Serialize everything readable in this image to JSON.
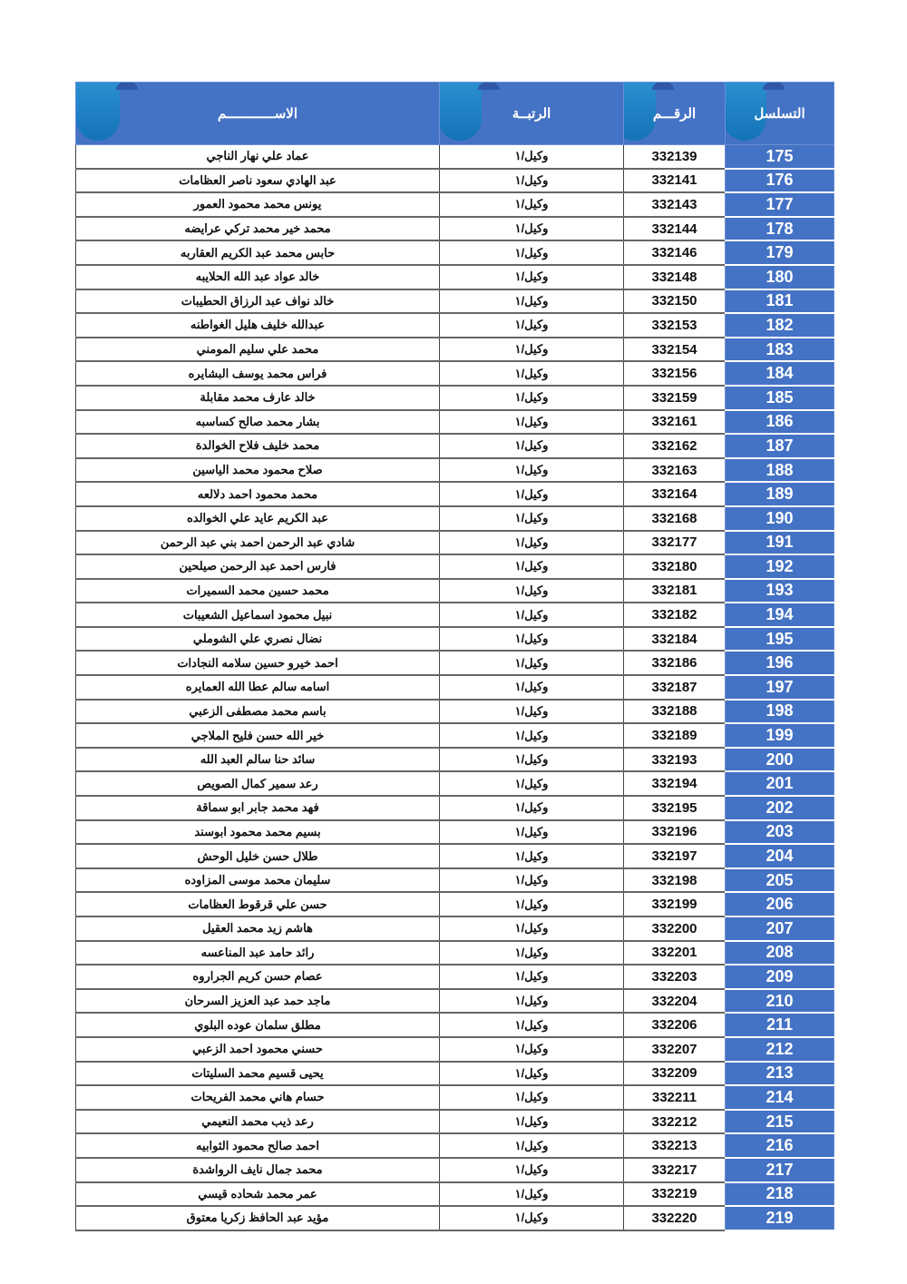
{
  "header": {
    "serial": "التسلسل",
    "number": "الرقـــم",
    "rank": "الرتبــة",
    "name": "الاســــــــــــم"
  },
  "colors": {
    "accent": "#4472C4",
    "tab": "#1F80C4"
  },
  "rows": [
    [
      "175",
      "332139",
      "وكيل/١",
      "عماد علي نهار الناجي"
    ],
    [
      "176",
      "332141",
      "وكيل/١",
      "عبد الهادي سعود ناصر العظامات"
    ],
    [
      "177",
      "332143",
      "وكيل/١",
      "يونس محمد محمود العمور"
    ],
    [
      "178",
      "332144",
      "وكيل/١",
      "محمد خير محمد تركي عرايضه"
    ],
    [
      "179",
      "332146",
      "وكيل/١",
      "حابس محمد عبد الكريم العقاربه"
    ],
    [
      "180",
      "332148",
      "وكيل/١",
      "خالد عواد عبد الله الحلايبه"
    ],
    [
      "181",
      "332150",
      "وكيل/١",
      "خالد نواف عبد الرزاق الحطيبات"
    ],
    [
      "182",
      "332153",
      "وكيل/١",
      "عبدالله خليف هليل الغواطنه"
    ],
    [
      "183",
      "332154",
      "وكيل/١",
      "محمد علي سليم المومني"
    ],
    [
      "184",
      "332156",
      "وكيل/١",
      "فراس محمد يوسف البشايره"
    ],
    [
      "185",
      "332159",
      "وكيل/١",
      "خالد عارف محمد مقابلة"
    ],
    [
      "186",
      "332161",
      "وكيل/١",
      "بشار محمد صالح كساسبه"
    ],
    [
      "187",
      "332162",
      "وكيل/١",
      "محمد خليف فلاح الخوالدة"
    ],
    [
      "188",
      "332163",
      "وكيل/١",
      "صلاح محمود محمد الياسين"
    ],
    [
      "189",
      "332164",
      "وكيل/١",
      "محمد محمود احمد دلالعه"
    ],
    [
      "190",
      "332168",
      "وكيل/١",
      "عبد الكريم عايد علي الخوالده"
    ],
    [
      "191",
      "332177",
      "وكيل/١",
      "شادي عبد الرحمن احمد بني عبد الرحمن"
    ],
    [
      "192",
      "332180",
      "وكيل/١",
      "فارس احمد عبد الرحمن صيلحين"
    ],
    [
      "193",
      "332181",
      "وكيل/١",
      "محمد حسين محمد السميرات"
    ],
    [
      "194",
      "332182",
      "وكيل/١",
      "نبيل محمود اسماعيل الشعيبات"
    ],
    [
      "195",
      "332184",
      "وكيل/١",
      "نضال نصري علي الشوملي"
    ],
    [
      "196",
      "332186",
      "وكيل/١",
      "احمد خيرو حسين سلامه النجادات"
    ],
    [
      "197",
      "332187",
      "وكيل/١",
      "اسامه سالم عطا الله العمايره"
    ],
    [
      "198",
      "332188",
      "وكيل/١",
      "باسم محمد مصطفى الزعبي"
    ],
    [
      "199",
      "332189",
      "وكيل/١",
      "خير الله حسن فليح الملاجي"
    ],
    [
      "200",
      "332193",
      "وكيل/١",
      "سائد حنا سالم العبد الله"
    ],
    [
      "201",
      "332194",
      "وكيل/١",
      "رعد سمير كمال الصويص"
    ],
    [
      "202",
      "332195",
      "وكيل/١",
      "فهد محمد جابر ابو سماقة"
    ],
    [
      "203",
      "332196",
      "وكيل/١",
      "بسيم محمد محمود ابوسند"
    ],
    [
      "204",
      "332197",
      "وكيل/١",
      "طلال حسن خليل الوحش"
    ],
    [
      "205",
      "332198",
      "وكيل/١",
      "سليمان محمد موسى المزاوده"
    ],
    [
      "206",
      "332199",
      "وكيل/١",
      "حسن علي قرقوط العظامات"
    ],
    [
      "207",
      "332200",
      "وكيل/١",
      "هاشم زيد محمد العقيل"
    ],
    [
      "208",
      "332201",
      "وكيل/١",
      "رائد حامد عبد المناعسه"
    ],
    [
      "209",
      "332203",
      "وكيل/١",
      "عصام حسن كريم الجراروه"
    ],
    [
      "210",
      "332204",
      "وكيل/١",
      "ماجد حمد عبد العزيز السرحان"
    ],
    [
      "211",
      "332206",
      "وكيل/١",
      "مطلق سلمان عوده البلوي"
    ],
    [
      "212",
      "332207",
      "وكيل/١",
      "حسني محمود احمد الزعبي"
    ],
    [
      "213",
      "332209",
      "وكيل/١",
      "يحيى قسيم محمد السليتات"
    ],
    [
      "214",
      "332211",
      "وكيل/١",
      "حسام هاني محمد الفريحات"
    ],
    [
      "215",
      "332212",
      "وكيل/١",
      "رعد ذيب محمد النعيمي"
    ],
    [
      "216",
      "332213",
      "وكيل/١",
      "احمد صالح محمود الثوابيه"
    ],
    [
      "217",
      "332217",
      "وكيل/١",
      "محمد جمال نايف الرواشدة"
    ],
    [
      "218",
      "332219",
      "وكيل/١",
      "عمر محمد شحاده قيسي"
    ],
    [
      "219",
      "332220",
      "وكيل/١",
      "مؤيد عبد الحافظ زكريا معتوق"
    ]
  ]
}
